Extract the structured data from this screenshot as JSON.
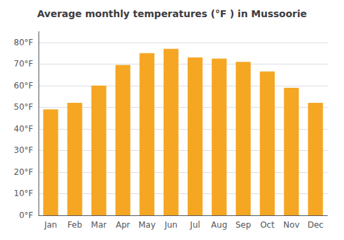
{
  "chart_data": {
    "type": "bar",
    "title": "Average monthly temperatures (°F ) in Mussoorie",
    "categories": [
      "Jan",
      "Feb",
      "Mar",
      "Apr",
      "May",
      "Jun",
      "Jul",
      "Aug",
      "Sep",
      "Oct",
      "Nov",
      "Dec"
    ],
    "values": [
      49,
      52,
      60,
      69.5,
      75,
      77,
      73,
      72.5,
      71,
      66.5,
      59,
      52
    ],
    "color": "#F5A623",
    "ylim": [
      0,
      85
    ],
    "yticks": [
      {
        "value": 0,
        "label": "0°F"
      },
      {
        "value": 10,
        "label": "10°F"
      },
      {
        "value": 20,
        "label": "20°F"
      },
      {
        "value": 30,
        "label": "30°F"
      },
      {
        "value": 40,
        "label": "40°F"
      },
      {
        "value": 50,
        "label": "50°F"
      },
      {
        "value": 60,
        "label": "60°F"
      },
      {
        "value": 70,
        "label": "70°F"
      },
      {
        "value": 80,
        "label": "80°F"
      }
    ],
    "grid": true
  }
}
